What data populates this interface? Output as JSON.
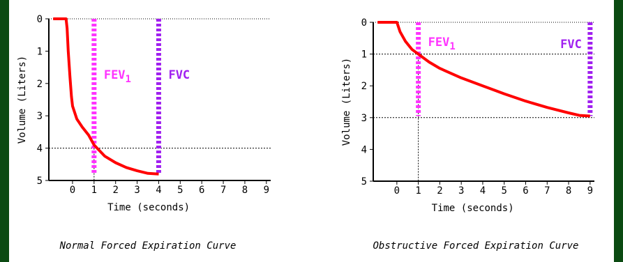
{
  "chart_data": [
    {
      "type": "line",
      "caption": "Normal Forced Expiration Curve",
      "xlabel": "Time (seconds)",
      "ylabel": "Volume (Liters)",
      "x_ticks": [
        "0",
        "1",
        "2",
        "3",
        "4",
        "5",
        "6",
        "7",
        "8",
        "9"
      ],
      "y_ticks": [
        "0",
        "1",
        "2",
        "3",
        "4",
        "5"
      ],
      "xlim": [
        -1.1,
        9.2
      ],
      "ylim": [
        0,
        5
      ],
      "y_inverted": true,
      "series": [
        {
          "color": "#ff0000",
          "points": [
            [
              -0.9,
              0
            ],
            [
              -0.3,
              0
            ],
            [
              -0.25,
              0.3
            ],
            [
              -0.2,
              1.0
            ],
            [
              -0.12,
              1.8
            ],
            [
              -0.05,
              2.4
            ],
            [
              0.0,
              2.7
            ],
            [
              0.2,
              3.1
            ],
            [
              0.45,
              3.35
            ],
            [
              0.75,
              3.6
            ],
            [
              1.0,
              3.9
            ],
            [
              1.5,
              4.25
            ],
            [
              2.0,
              4.45
            ],
            [
              2.5,
              4.6
            ],
            [
              3.0,
              4.7
            ],
            [
              3.5,
              4.78
            ],
            [
              4.0,
              4.8
            ]
          ]
        }
      ],
      "annotations": [
        {
          "label": "FEV",
          "sub": "1",
          "x": 1,
          "color": "#ff33ff"
        },
        {
          "label": "FVC",
          "x": 4,
          "color": "#a020f0"
        }
      ],
      "reference_lines": [
        {
          "y": 4,
          "dotted": true
        },
        {
          "x": 1,
          "from_y": 4,
          "to_y": 5,
          "dotted": true
        }
      ]
    },
    {
      "type": "line",
      "caption": "Obstructive Forced Expiration Curve",
      "xlabel": "Time (seconds)",
      "ylabel": "Volume (Liters)",
      "x_ticks": [
        "0",
        "1",
        "2",
        "3",
        "4",
        "5",
        "6",
        "7",
        "8",
        "9"
      ],
      "y_ticks": [
        "0",
        "1",
        "2",
        "3",
        "4",
        "5"
      ],
      "xlim": [
        -1.1,
        9.2
      ],
      "ylim": [
        0,
        5
      ],
      "y_inverted": true,
      "series": [
        {
          "color": "#ff0000",
          "points": [
            [
              -0.9,
              0
            ],
            [
              0.0,
              0
            ],
            [
              0.15,
              0.3
            ],
            [
              0.4,
              0.6
            ],
            [
              0.7,
              0.85
            ],
            [
              1.0,
              1.0
            ],
            [
              1.5,
              1.25
            ],
            [
              2.0,
              1.45
            ],
            [
              3.0,
              1.75
            ],
            [
              4.0,
              2.0
            ],
            [
              5.0,
              2.25
            ],
            [
              6.0,
              2.48
            ],
            [
              7.0,
              2.68
            ],
            [
              8.0,
              2.85
            ],
            [
              8.5,
              2.93
            ],
            [
              9.0,
              2.95
            ]
          ]
        }
      ],
      "annotations": [
        {
          "label": "FEV",
          "sub": "1",
          "x": 1,
          "color": "#ff33ff"
        },
        {
          "label": "FVC",
          "x": 9,
          "color": "#a020f0"
        }
      ],
      "reference_lines": [
        {
          "y": 1,
          "dotted": true
        },
        {
          "y": 3,
          "dotted": true
        },
        {
          "x": 1,
          "from_y": 1,
          "to_y": 5,
          "dotted": true
        }
      ]
    }
  ]
}
